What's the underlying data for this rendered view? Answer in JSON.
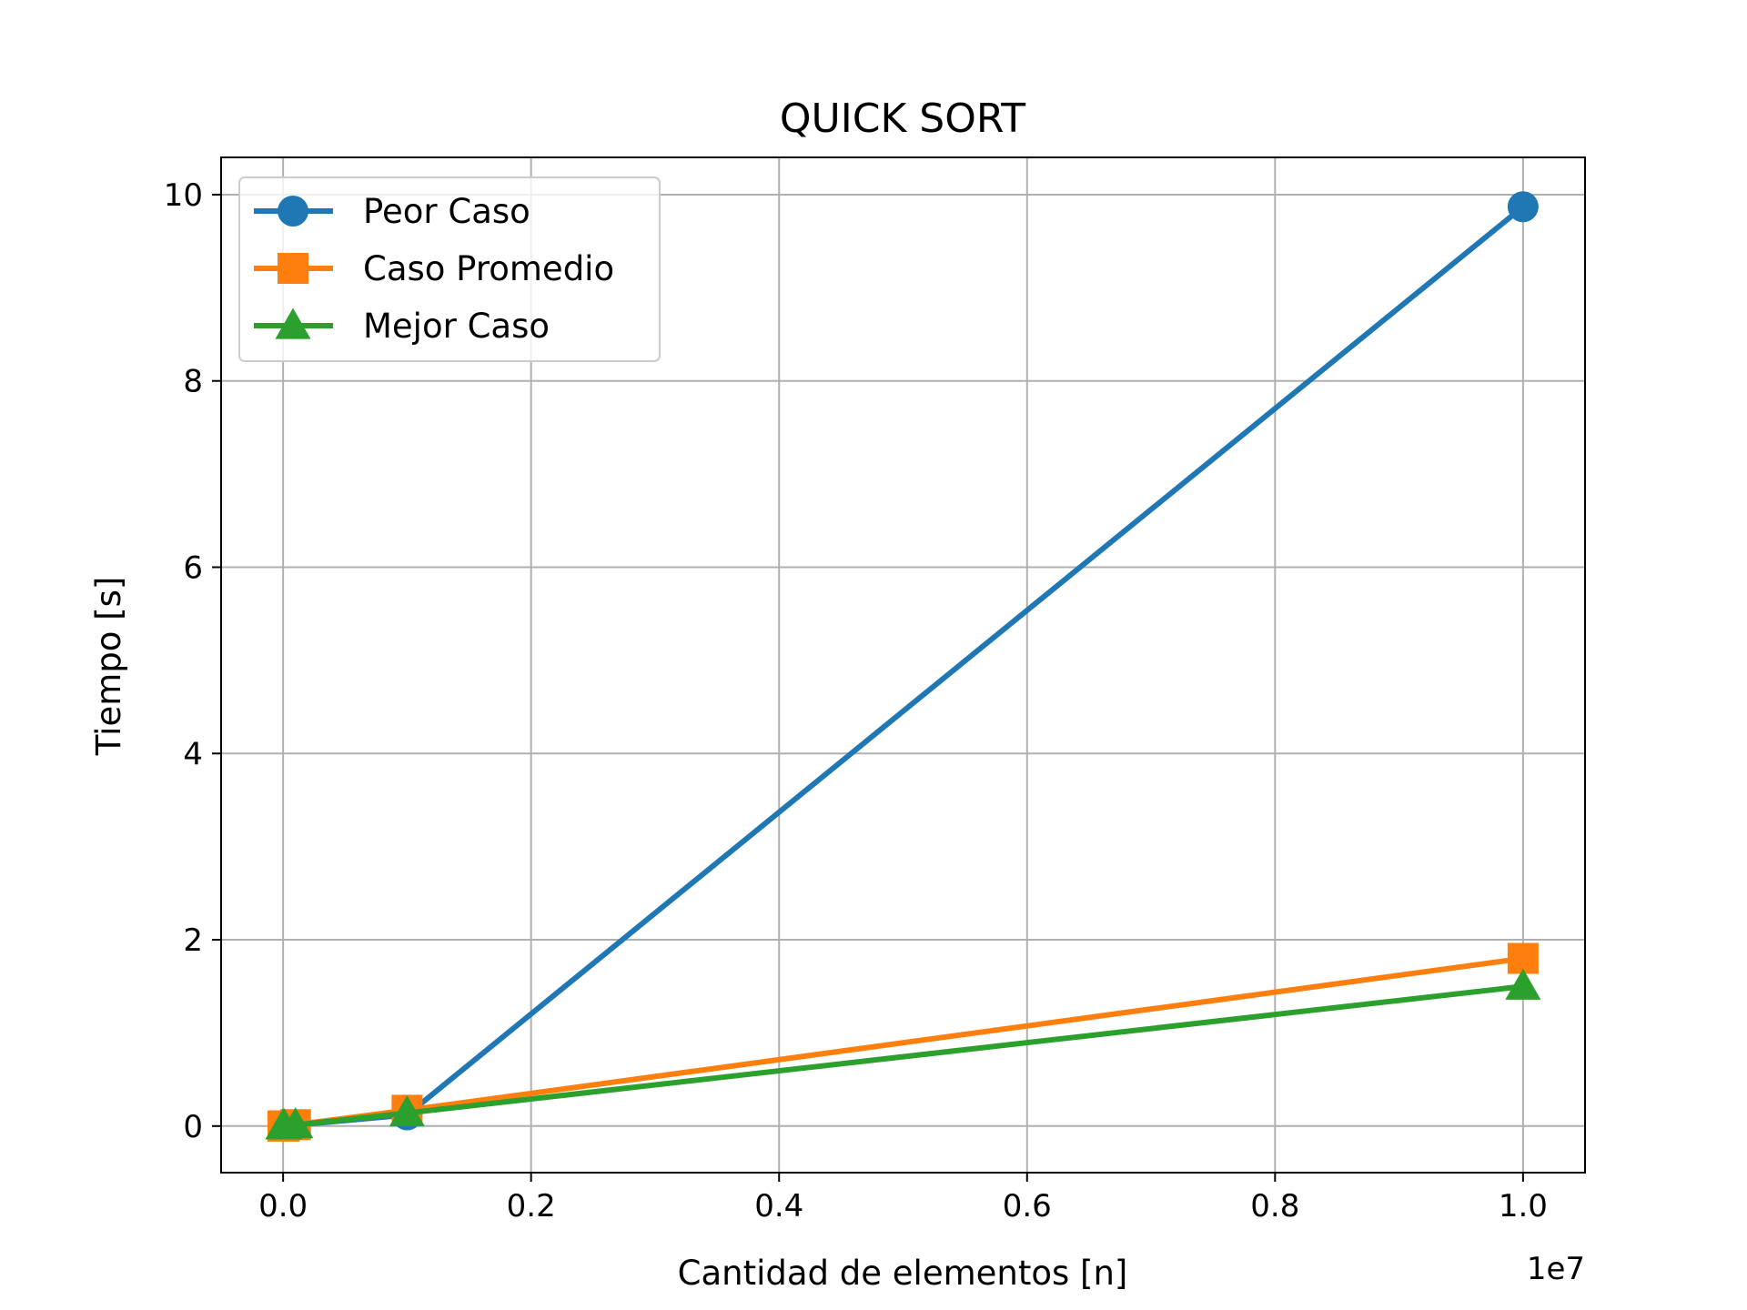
{
  "chart_data": {
    "type": "line",
    "title": "QUICK SORT",
    "xlabel": "Cantidad de elementos [n]",
    "ylabel": "Tiempo [s]",
    "x_offset_label": "1e7",
    "x_scale": 10000000,
    "xlim": [
      -500000,
      10500000
    ],
    "ylim": [
      -0.5,
      10.4
    ],
    "xticks": [
      0,
      2000000,
      4000000,
      6000000,
      8000000,
      10000000
    ],
    "xtick_labels": [
      "0.0",
      "0.2",
      "0.4",
      "0.6",
      "0.8",
      "1.0"
    ],
    "yticks": [
      0,
      2,
      4,
      6,
      8,
      10
    ],
    "ytick_labels": [
      "0",
      "2",
      "4",
      "6",
      "8",
      "10"
    ],
    "grid": true,
    "legend_position": "top-left",
    "x": [
      10,
      100,
      1000,
      10000,
      100000,
      1000000,
      10000000
    ],
    "series": [
      {
        "name": "Peor Caso",
        "color": "#1f77b4",
        "marker": "circle",
        "values": [
          0.0,
          0.0,
          0.0,
          0.001,
          0.01,
          0.12,
          9.87
        ]
      },
      {
        "name": "Caso Promedio",
        "color": "#ff7f0e",
        "marker": "square",
        "values": [
          0.0,
          0.0,
          0.0,
          0.001,
          0.015,
          0.17,
          1.8
        ]
      },
      {
        "name": "Mejor Caso",
        "color": "#2ca02c",
        "marker": "triangle",
        "values": [
          0.0,
          0.0,
          0.0,
          0.001,
          0.012,
          0.14,
          1.5
        ]
      }
    ]
  }
}
